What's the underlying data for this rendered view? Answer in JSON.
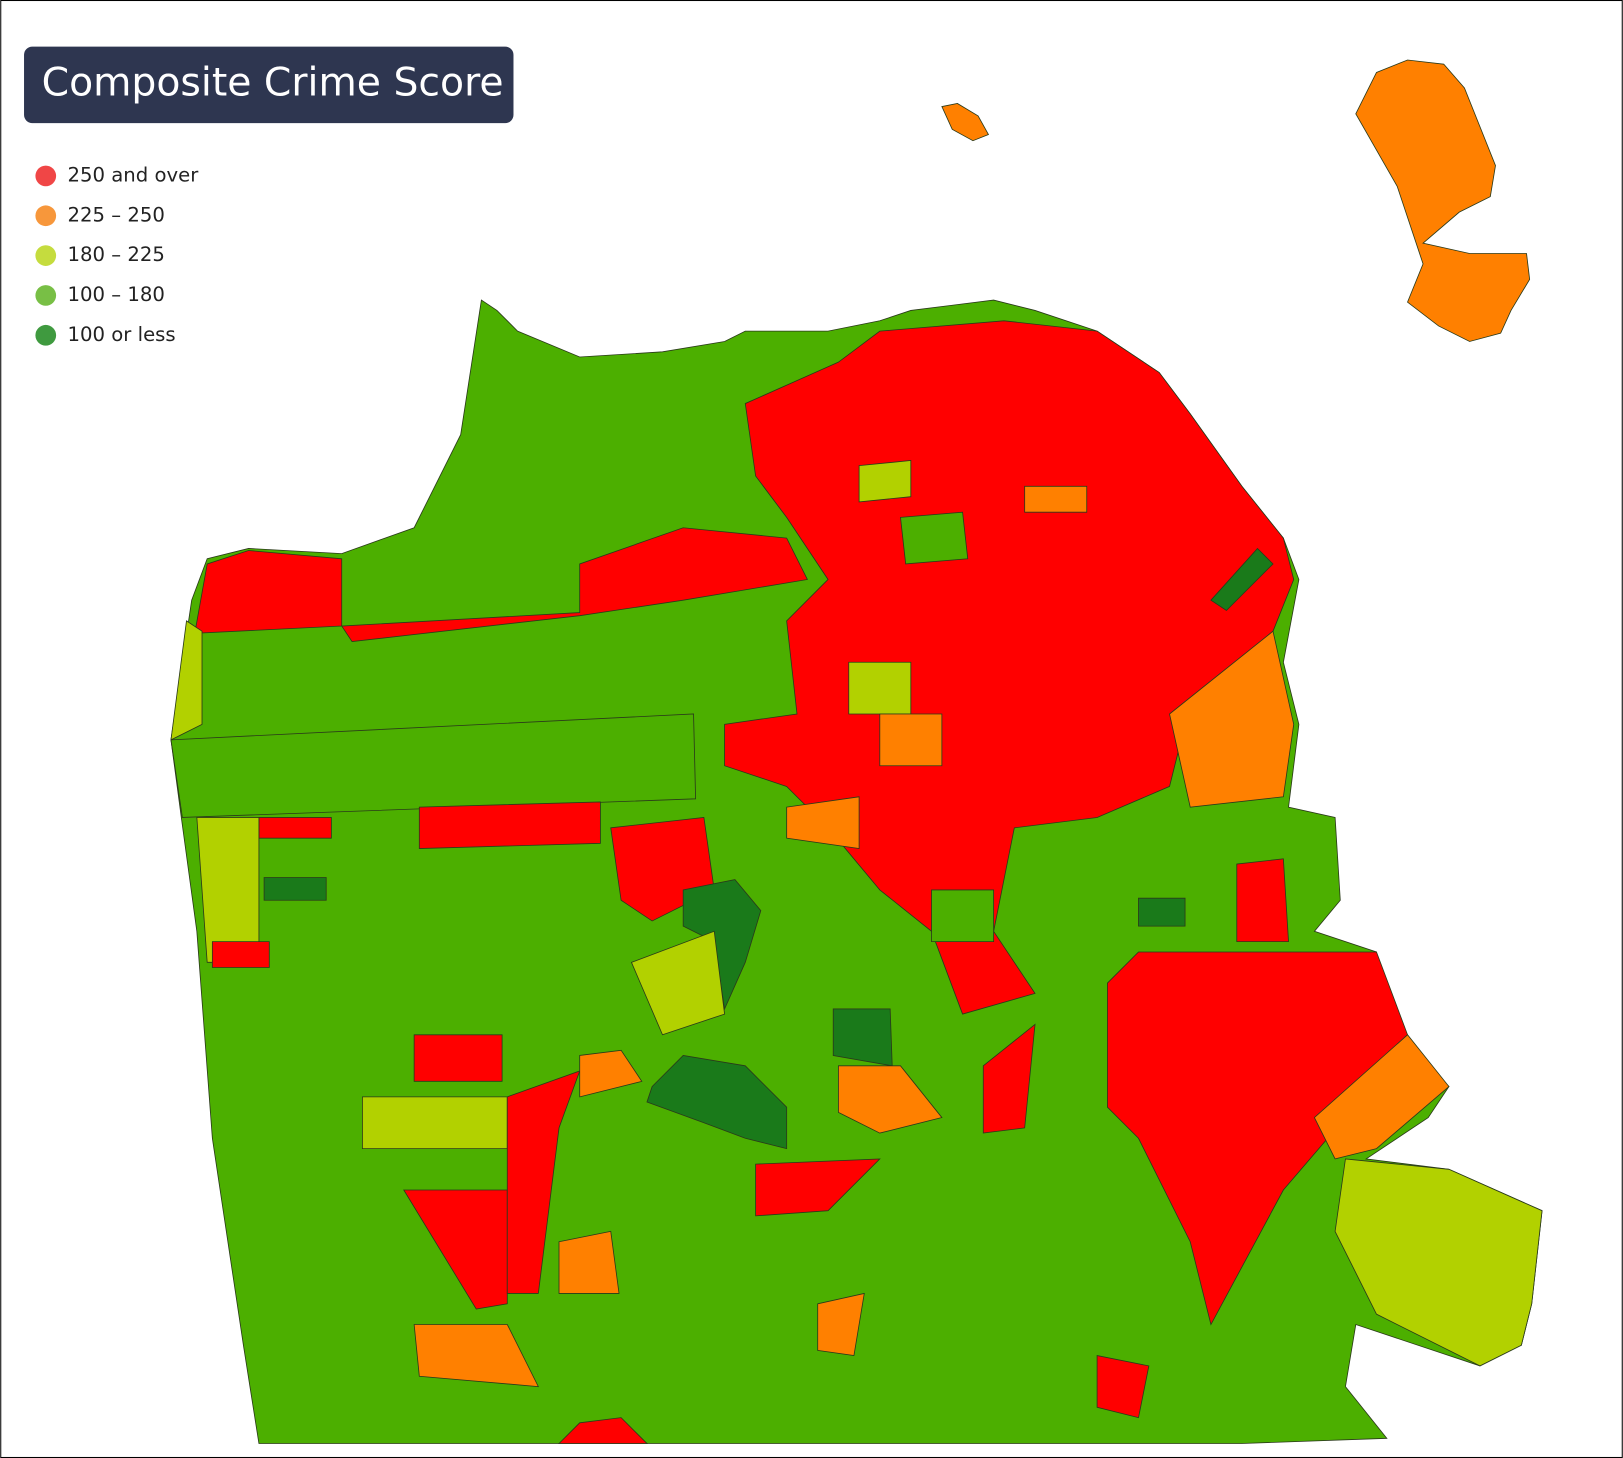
{
  "title": "Composite Crime Score",
  "legend": [
    {
      "label": "250 and over",
      "color": "#f04646"
    },
    {
      "label": "225 – 250",
      "color": "#f7973b"
    },
    {
      "label": "180 – 225",
      "color": "#c5dc3e"
    },
    {
      "label": "100 – 180",
      "color": "#78bf45"
    },
    {
      "label": "100 or less",
      "color": "#3f9a3f"
    }
  ]
}
